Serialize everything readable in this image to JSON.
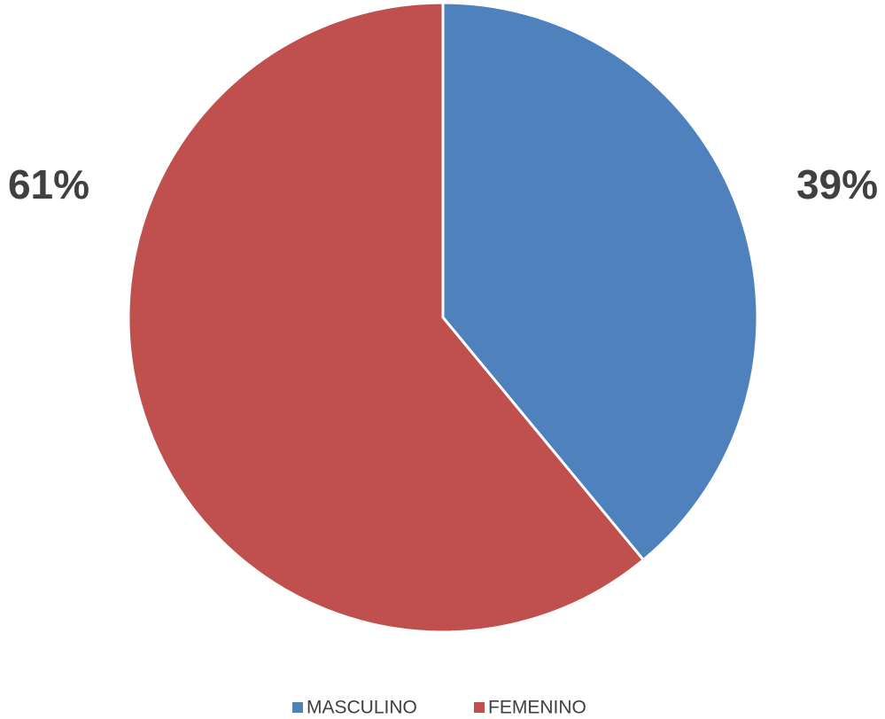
{
  "chart_data": {
    "type": "pie",
    "categories": [
      "MASCULINO",
      "FEMENINO"
    ],
    "values": [
      39,
      61
    ],
    "value_labels": [
      "39%",
      "61%"
    ],
    "colors": [
      "#4f81bd",
      "#c0504d"
    ],
    "legend": "bottom"
  }
}
